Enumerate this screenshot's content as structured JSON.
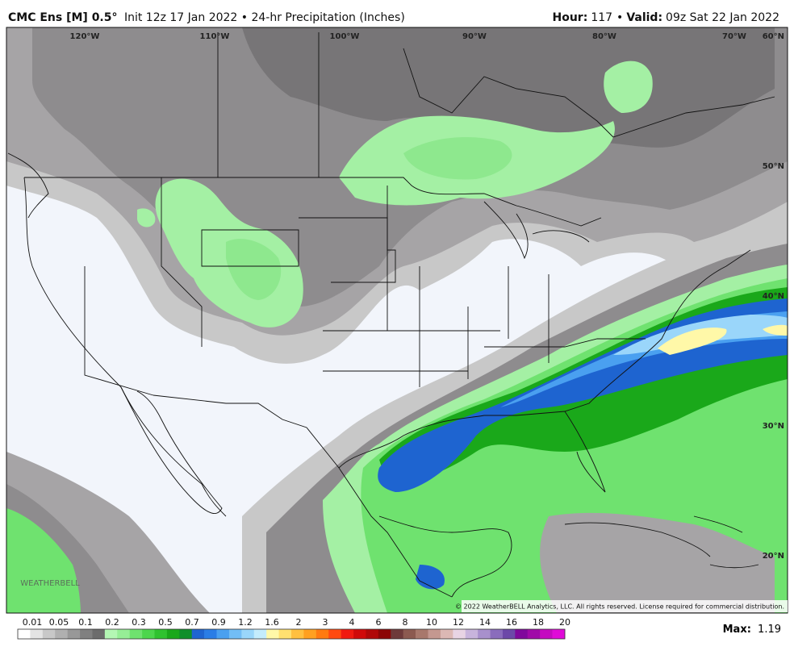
{
  "header": {
    "title": "CMC Ens [M] 0.5°",
    "subtitle": "Init 12z 17 Jan 2022 • 24-hr Precipitation (Inches)",
    "right": [
      {
        "text": "Hour:",
        "bold": true
      },
      {
        "text": "117"
      },
      {
        "text": "•"
      },
      {
        "text": "Valid:",
        "bold": true
      },
      {
        "text": "09z Sat 22 Jan 2022"
      }
    ]
  },
  "map": {
    "longitudes": [
      "120°W",
      "110°W",
      "100°W",
      "90°W",
      "80°W",
      "70°W"
    ],
    "latitudes": [
      "60°N",
      "50°N",
      "40°N",
      "30°N",
      "20°N"
    ],
    "logo": "WEATHERBELL",
    "copyright": "© 2022 WeatherBELL Analytics, LLC. All rights reserved. License required for commercial distribution."
  },
  "colorbar": {
    "labels": [
      0.01,
      0.05,
      0.1,
      0.2,
      0.3,
      0.5,
      0.7,
      0.9,
      1.2,
      1.6,
      2,
      3,
      4,
      6,
      8,
      10,
      12,
      14,
      16,
      18,
      20
    ],
    "colors": [
      "#ffffff",
      "#e4e4e4",
      "#c8c8c8",
      "#b0b0b0",
      "#989898",
      "#808080",
      "#6c6c6c",
      "#b4f7b4",
      "#96ee96",
      "#6fe26f",
      "#4cd64c",
      "#2fc22f",
      "#1aa81a",
      "#0f8f2a",
      "#1e64d0",
      "#2a7de6",
      "#4aa0f0",
      "#72bdf5",
      "#9ad6fa",
      "#c4ecfc",
      "#fff8a8",
      "#ffe070",
      "#ffc040",
      "#ffa020",
      "#ff7a10",
      "#ff4a10",
      "#f01a10",
      "#d00a0a",
      "#b00808",
      "#8c0606",
      "#6e3a3a",
      "#8c5a50",
      "#a8786c",
      "#c49890",
      "#dcb8b4",
      "#e8d4e4",
      "#c8b4dc",
      "#a890cc",
      "#8a6cbc",
      "#6c48a8",
      "#80089c",
      "#a00aa8",
      "#c40ac0",
      "#e00ad8"
    ],
    "max_label": "Max:",
    "max_value": 1.19
  }
}
